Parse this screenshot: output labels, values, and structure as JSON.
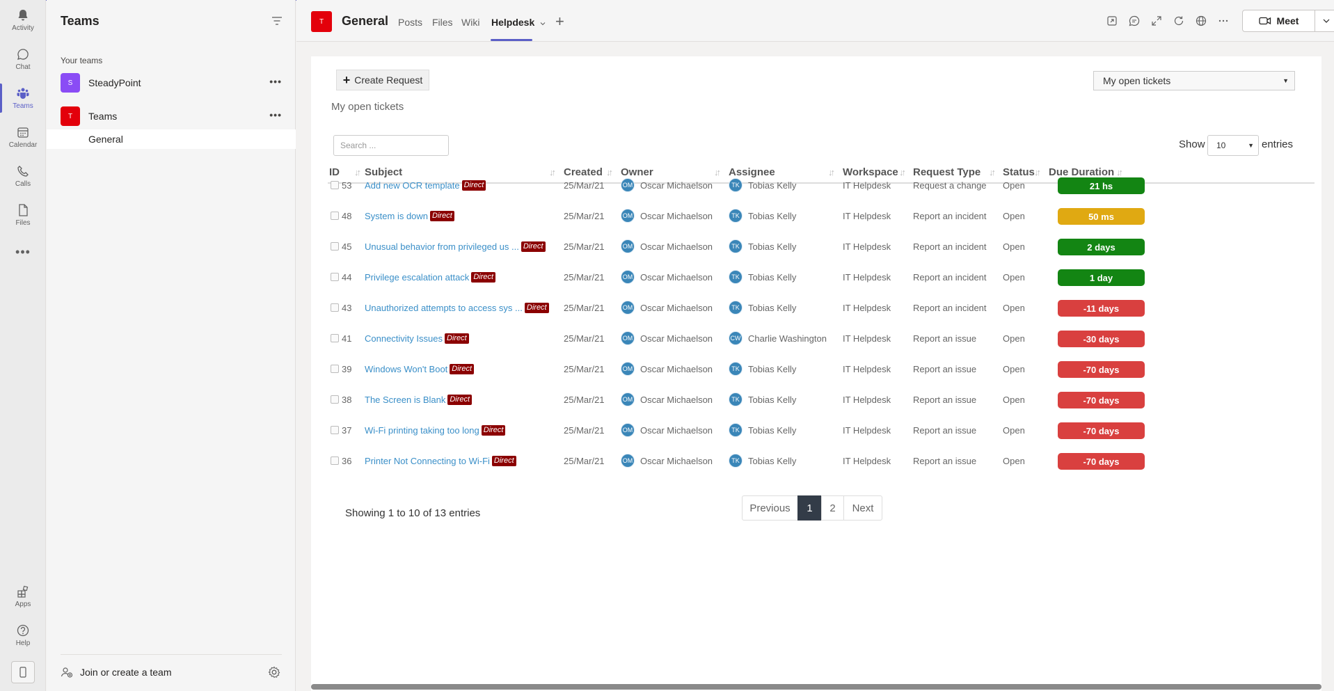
{
  "rail": {
    "items": [
      {
        "label": "Activity",
        "icon": "bell-icon"
      },
      {
        "label": "Chat",
        "icon": "chat-icon"
      },
      {
        "label": "Teams",
        "icon": "teams-icon"
      },
      {
        "label": "Calendar",
        "icon": "calendar-icon"
      },
      {
        "label": "Calls",
        "icon": "phone-icon"
      },
      {
        "label": "Files",
        "icon": "file-icon"
      }
    ],
    "more": "•••",
    "bottom": [
      {
        "label": "Apps",
        "icon": "apps-icon"
      },
      {
        "label": "Help",
        "icon": "help-icon"
      }
    ]
  },
  "teams_pane": {
    "title": "Teams",
    "section_label": "Your teams",
    "teams": [
      {
        "name": "SteadyPoint",
        "initial": "S",
        "color": "#8a4cf5"
      },
      {
        "name": "Teams",
        "initial": "T",
        "color": "#e3000b"
      }
    ],
    "channel": "General",
    "join_label": "Join or create a team",
    "more": "•••"
  },
  "header": {
    "avatar_initial": "T",
    "channel_title": "General",
    "tabs": [
      "Posts",
      "Files",
      "Wiki",
      "Helpdesk"
    ],
    "add": "+",
    "meet_label": "Meet"
  },
  "toolbar": {
    "create_label": "Create Request",
    "view_title": "My open tickets",
    "view_select": "My open tickets",
    "search_placeholder": "Search ...",
    "show_label": "Show",
    "show_value": "10",
    "entries_label": "entries"
  },
  "table": {
    "columns": [
      "ID",
      "Subject",
      "Created",
      "Owner",
      "Assignee",
      "Workspace",
      "Request Type",
      "Status",
      "Due Duration"
    ],
    "direct_label": "Direct",
    "rows": [
      {
        "id": "53",
        "subject": "Add new OCR template",
        "created": "25/Mar/21",
        "owner_initials": "OM",
        "owner": "Oscar Michaelson",
        "assignee_initials": "TK",
        "assignee": "Tobias Kelly",
        "workspace": "IT Helpdesk",
        "type": "Request a change",
        "status": "Open",
        "due": "21 hs",
        "due_color": "green"
      },
      {
        "id": "48",
        "subject": "System is down",
        "created": "25/Mar/21",
        "owner_initials": "OM",
        "owner": "Oscar Michaelson",
        "assignee_initials": "TK",
        "assignee": "Tobias Kelly",
        "workspace": "IT Helpdesk",
        "type": "Report an incident",
        "status": "Open",
        "due": "50 ms",
        "due_color": "yellow"
      },
      {
        "id": "45",
        "subject": "Unusual behavior from privileged us ...",
        "created": "25/Mar/21",
        "owner_initials": "OM",
        "owner": "Oscar Michaelson",
        "assignee_initials": "TK",
        "assignee": "Tobias Kelly",
        "workspace": "IT Helpdesk",
        "type": "Report an incident",
        "status": "Open",
        "due": "2 days",
        "due_color": "green"
      },
      {
        "id": "44",
        "subject": "Privilege escalation attack",
        "created": "25/Mar/21",
        "owner_initials": "OM",
        "owner": "Oscar Michaelson",
        "assignee_initials": "TK",
        "assignee": "Tobias Kelly",
        "workspace": "IT Helpdesk",
        "type": "Report an incident",
        "status": "Open",
        "due": "1 day",
        "due_color": "green"
      },
      {
        "id": "43",
        "subject": "Unauthorized attempts to access sys ...",
        "created": "25/Mar/21",
        "owner_initials": "OM",
        "owner": "Oscar Michaelson",
        "assignee_initials": "TK",
        "assignee": "Tobias Kelly",
        "workspace": "IT Helpdesk",
        "type": "Report an incident",
        "status": "Open",
        "due": "-11 days",
        "due_color": "red"
      },
      {
        "id": "41",
        "subject": "Connectivity Issues",
        "created": "25/Mar/21",
        "owner_initials": "OM",
        "owner": "Oscar Michaelson",
        "assignee_initials": "CW",
        "assignee": "Charlie Washington",
        "workspace": "IT Helpdesk",
        "type": "Report an issue",
        "status": "Open",
        "due": "-30 days",
        "due_color": "red"
      },
      {
        "id": "39",
        "subject": "Windows Won't Boot",
        "created": "25/Mar/21",
        "owner_initials": "OM",
        "owner": "Oscar Michaelson",
        "assignee_initials": "TK",
        "assignee": "Tobias Kelly",
        "workspace": "IT Helpdesk",
        "type": "Report an issue",
        "status": "Open",
        "due": "-70 days",
        "due_color": "red"
      },
      {
        "id": "38",
        "subject": "The Screen is Blank",
        "created": "25/Mar/21",
        "owner_initials": "OM",
        "owner": "Oscar Michaelson",
        "assignee_initials": "TK",
        "assignee": "Tobias Kelly",
        "workspace": "IT Helpdesk",
        "type": "Report an issue",
        "status": "Open",
        "due": "-70 days",
        "due_color": "red"
      },
      {
        "id": "37",
        "subject": "Wi-Fi printing taking too long",
        "created": "25/Mar/21",
        "owner_initials": "OM",
        "owner": "Oscar Michaelson",
        "assignee_initials": "TK",
        "assignee": "Tobias Kelly",
        "workspace": "IT Helpdesk",
        "type": "Report an issue",
        "status": "Open",
        "due": "-70 days",
        "due_color": "red"
      },
      {
        "id": "36",
        "subject": "Printer Not Connecting to Wi-Fi",
        "created": "25/Mar/21",
        "owner_initials": "OM",
        "owner": "Oscar Michaelson",
        "assignee_initials": "TK",
        "assignee": "Tobias Kelly",
        "workspace": "IT Helpdesk",
        "type": "Report an issue",
        "status": "Open",
        "due": "-70 days",
        "due_color": "red"
      }
    ]
  },
  "footer": {
    "showing": "Showing 1 to 10 of 13 entries",
    "pages": [
      "Previous",
      "1",
      "2",
      "Next"
    ],
    "active_page": "1"
  },
  "colors": {
    "accent": "#5b5fc7",
    "link": "#3a8fc8",
    "direct_badge": "#8b0000",
    "due_green": "#138513",
    "due_yellow": "#e0a912",
    "due_red": "#d9403f"
  }
}
